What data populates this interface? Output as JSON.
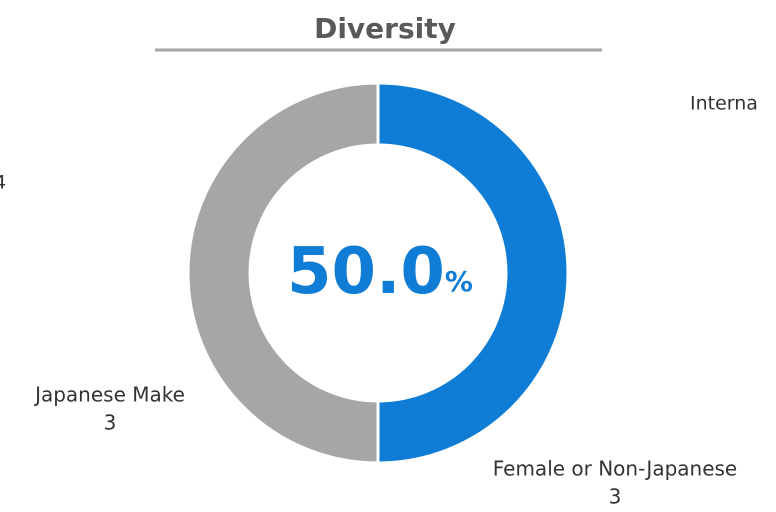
{
  "chart_data": {
    "type": "pie",
    "title": "Diversity",
    "categories": [
      "Female or Non-Japanese",
      "Japanese Make"
    ],
    "values": [
      3,
      3
    ],
    "colors": [
      "#0f7cd6",
      "#a6a6a6"
    ],
    "donut": true,
    "center_label": "50.0",
    "center_unit": "%",
    "annotations": [
      "Interna",
      "4"
    ]
  }
}
